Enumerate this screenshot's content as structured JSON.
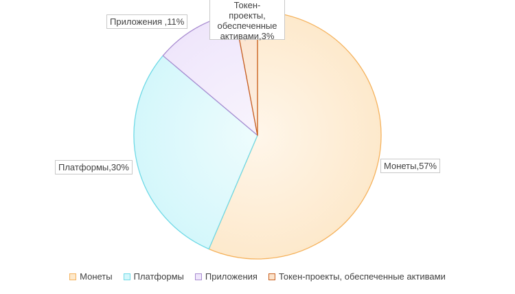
{
  "chart_data": {
    "type": "pie",
    "categories": [
      "Монеты",
      "Платформы",
      "Приложения",
      "Токен-проекты, обеспеченные активами"
    ],
    "values": [
      57,
      30,
      11,
      3
    ],
    "unit": "%",
    "data_labels": [
      "Монеты,57%",
      "Платформы,30%",
      "Приложения ,11%",
      "Токен-проекты, обеспеченные активами,3%"
    ],
    "legend_position": "bottom",
    "colors": {
      "fills": [
        "#fde9cc",
        "#d4f7fb",
        "#efe6fb",
        "#fbe3cc"
      ],
      "strokes": [
        "#f5b25c",
        "#6ed9e6",
        "#a88bd0",
        "#c85f1e"
      ],
      "gradient_inner": [
        "#fff6ea",
        "#eefcfd",
        "#f8f4fd",
        "#fdf0e4"
      ]
    }
  }
}
